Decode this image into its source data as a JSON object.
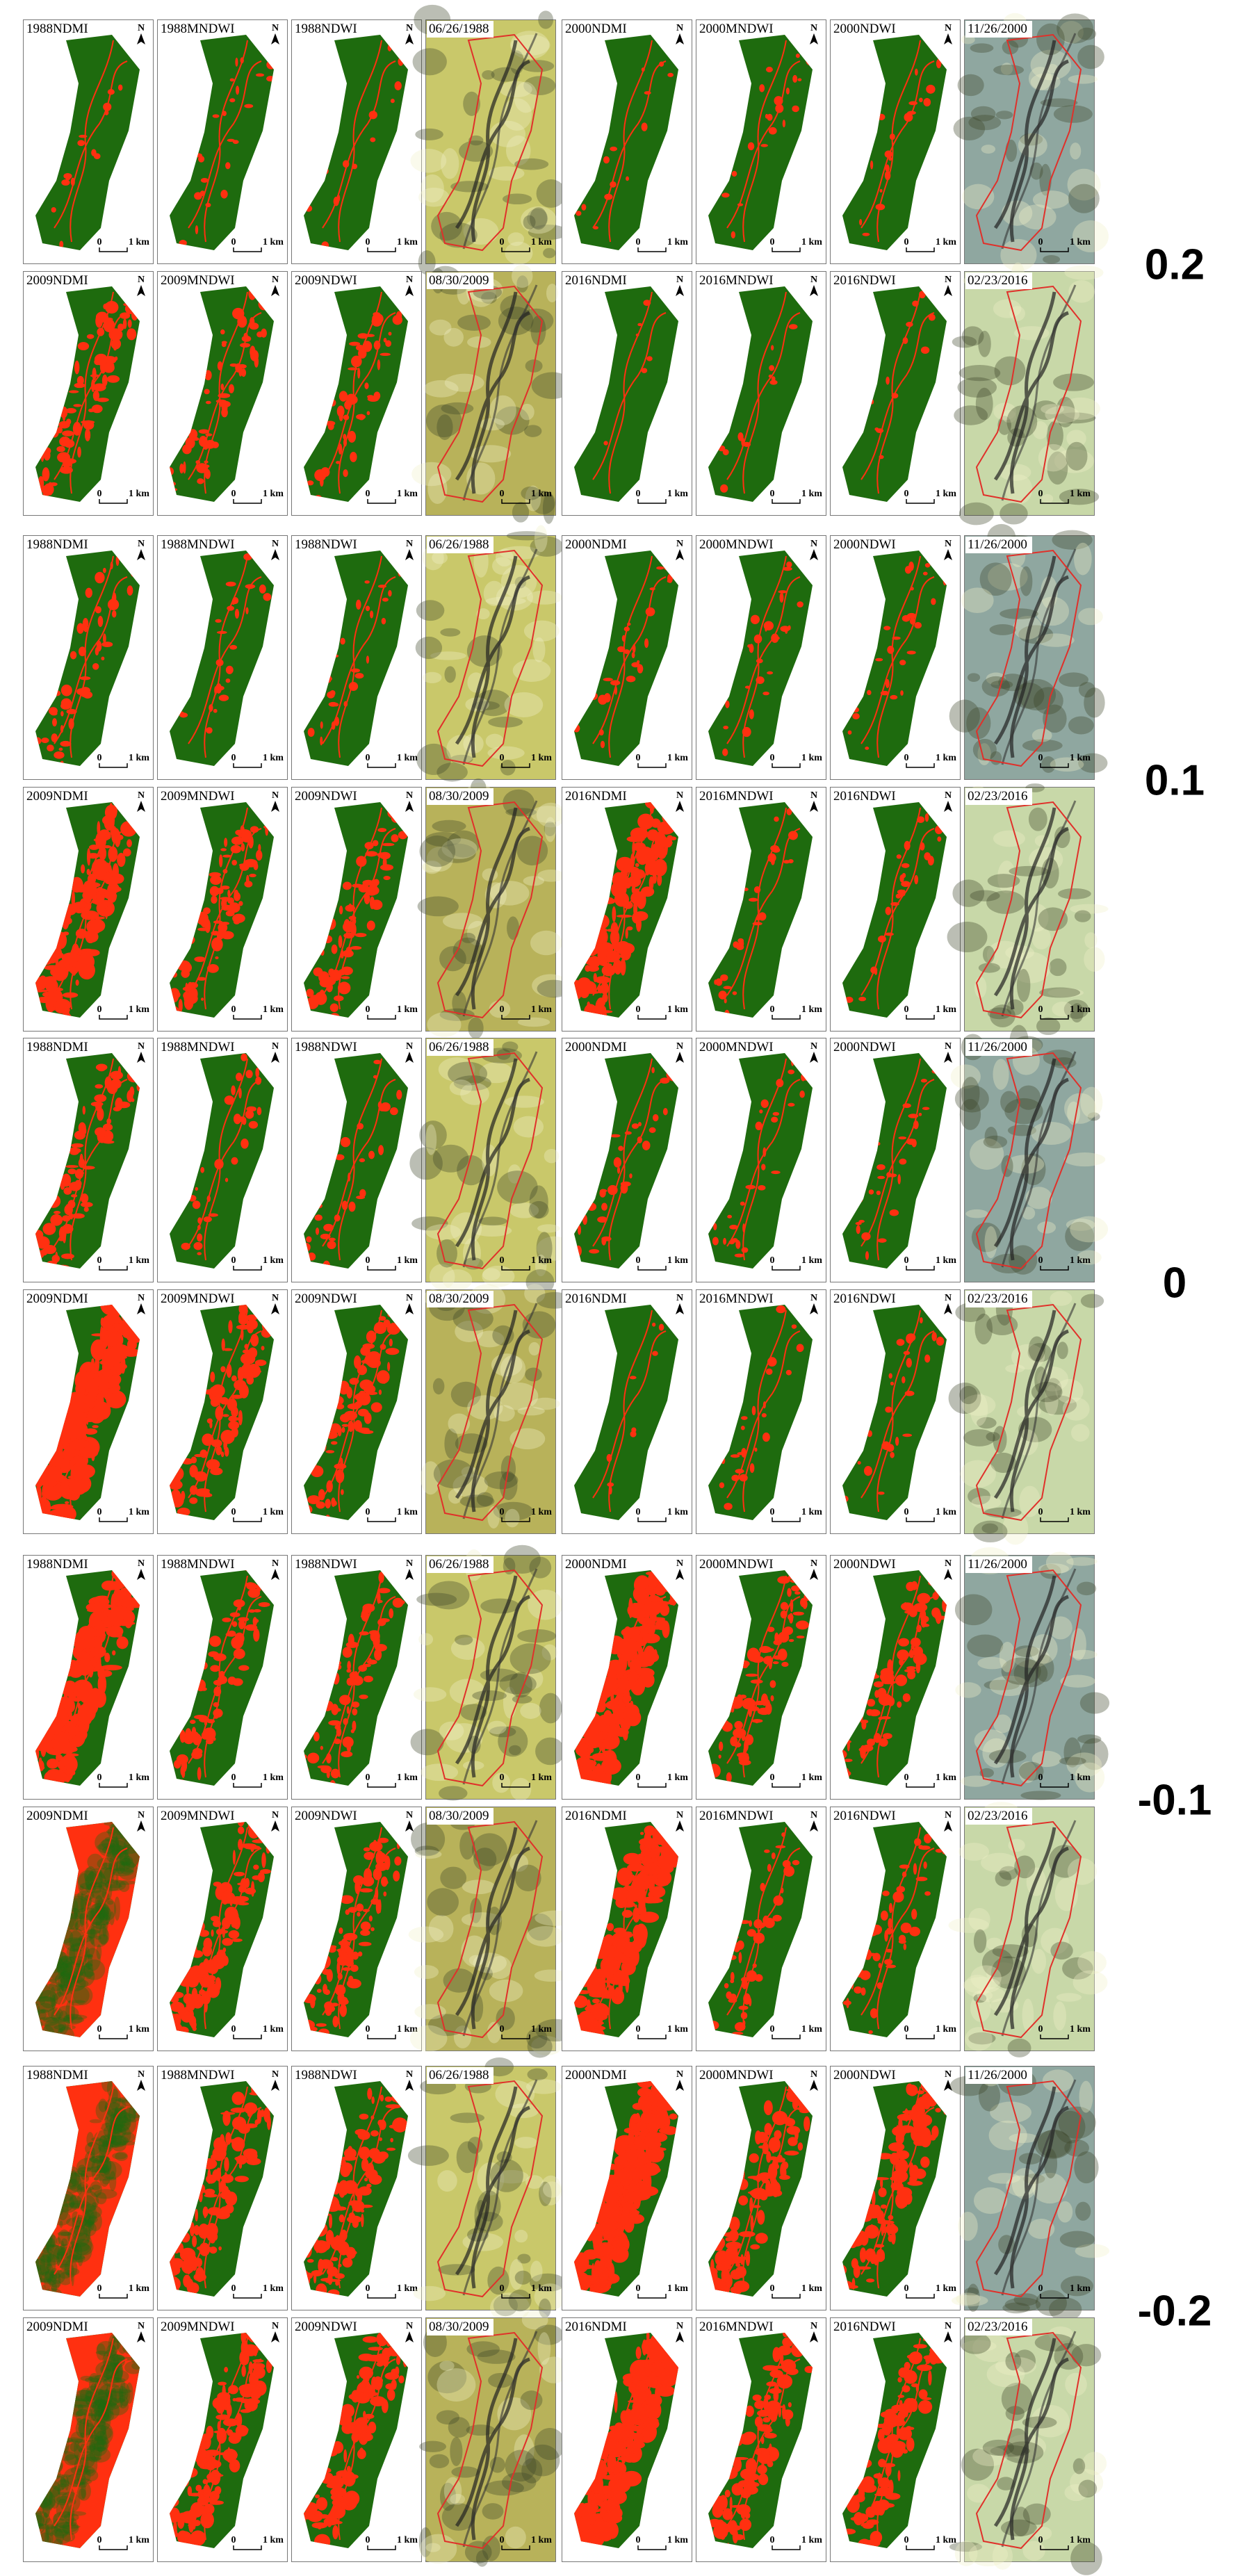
{
  "groups": [
    {
      "threshold": "0.2",
      "rows": [
        [
          "1988NDMI",
          "1988MNDWI",
          "1988NDWI",
          "06/26/1988",
          "2000NDMI",
          "2000MNDWI",
          "2000NDWI",
          "11/26/2000"
        ],
        [
          "2009NDMI",
          "2009MNDWI",
          "2009NDWI",
          "08/30/2009",
          "2016NDMI",
          "2016MNDWI",
          "2016NDWI",
          "02/23/2016"
        ]
      ]
    },
    {
      "threshold": "0.1",
      "rows": [
        [
          "1988NDMI",
          "1988MNDWI",
          "1988NDWI",
          "06/26/1988",
          "2000NDMI",
          "2000MNDWI",
          "2000NDWI",
          "11/26/2000"
        ],
        [
          "2009NDMI",
          "2009MNDWI",
          "2009NDWI",
          "08/30/2009",
          "2016NDMI",
          "2016MNDWI",
          "2016NDWI",
          "02/23/2016"
        ]
      ]
    },
    {
      "threshold": "0",
      "rows": [
        [
          "1988NDMI",
          "1988MNDWI",
          "1988NDWI",
          "06/26/1988",
          "2000NDMI",
          "2000MNDWI",
          "2000NDWI",
          "11/26/2000"
        ],
        [
          "2009NDMI",
          "2009MNDWI",
          "2009NDWI",
          "08/30/2009",
          "2016NDMI",
          "2016MNDWI",
          "2016NDWI",
          "02/23/2016"
        ]
      ]
    },
    {
      "threshold": "-0.1",
      "rows": [
        [
          "1988NDMI",
          "1988MNDWI",
          "1988NDWI",
          "06/26/1988",
          "2000NDMI",
          "2000MNDWI",
          "2000NDWI",
          "11/26/2000"
        ],
        [
          "2009NDMI",
          "2009MNDWI",
          "2009NDWI",
          "08/30/2009",
          "2016NDMI",
          "2016MNDWI",
          "2016NDWI",
          "02/23/2016"
        ]
      ]
    },
    {
      "threshold": "-0.2",
      "rows": [
        [
          "1988NDMI",
          "1988MNDWI",
          "1988NDWI",
          "06/26/1988",
          "2000NDMI",
          "2000MNDWI",
          "2000NDWI",
          "11/26/2000"
        ],
        [
          "2009NDMI",
          "2009MNDWI",
          "2009NDWI",
          "08/30/2009",
          "2016NDMI",
          "2016MNDWI",
          "2016NDWI",
          "02/23/2016"
        ]
      ]
    }
  ],
  "scale_bar": {
    "zero": "0",
    "unit": "1 km"
  },
  "north": "N"
}
